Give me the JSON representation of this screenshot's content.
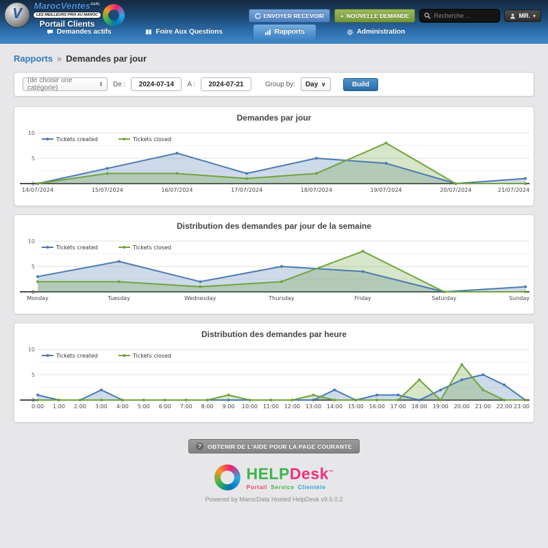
{
  "header": {
    "brand_name": "MarocVentes",
    "brand_suffix": "SARL",
    "brand_emblem_letter": "V",
    "brand_tagline": "LES MEILLEURS PRIX AU MAROC",
    "brand_subtitle": "Portail Clients",
    "send_receive_label": "ENVOYER RECEVOIR",
    "new_request_label": "NOUVELLE DEMANDE",
    "search_placeholder": "Recherche ...",
    "user_label": "MR.",
    "caret": "▾"
  },
  "nav": {
    "items": [
      {
        "label": "Demandes actifs"
      },
      {
        "label": "Foire Aux Questions"
      },
      {
        "label": "Rapports"
      },
      {
        "label": "Administration"
      }
    ]
  },
  "breadcrumb": {
    "section": "Rapports",
    "separator": "»",
    "page": "Demandes par jour"
  },
  "filters": {
    "category_placeholder": "(de choisir une catégorie)",
    "from_label": "De :",
    "from_value": "2024-07-14",
    "to_label": "A :",
    "to_value": "2024-07-21",
    "group_label": "Group by:",
    "group_value": "Day",
    "group_chevron": "∨",
    "build_label": "Build"
  },
  "chart_data": [
    {
      "type": "area",
      "title": "Demandes par jour",
      "categories": [
        "14/07/2024",
        "15/07/2024",
        "16/07/2024",
        "17/07/2024",
        "18/07/2024",
        "19/07/2024",
        "20/07/2024",
        "21/07/2024"
      ],
      "series": [
        {
          "name": "Tickets created",
          "color": "#4a7ab0",
          "values": [
            0,
            3,
            6,
            2,
            5,
            4,
            0,
            1
          ]
        },
        {
          "name": "Tickets closed",
          "color": "#71a33d",
          "values": [
            0,
            2,
            2,
            1,
            2,
            8,
            0,
            0
          ]
        }
      ],
      "ylim": [
        0,
        10
      ],
      "yticks": [
        0,
        5,
        10
      ],
      "legend_position": "top-left",
      "grid": true
    },
    {
      "type": "area",
      "title": "Distribution des demandes par jour de la semaine",
      "categories": [
        "Monday",
        "Tuesday",
        "Wednesday",
        "Thursday",
        "Friday",
        "Saturday",
        "Sunday"
      ],
      "series": [
        {
          "name": "Tickets created",
          "color": "#4a7ab0",
          "values": [
            3,
            6,
            2,
            5,
            4,
            0,
            1
          ]
        },
        {
          "name": "Tickets closed",
          "color": "#71a33d",
          "values": [
            2,
            2,
            1,
            2,
            8,
            0,
            0
          ]
        }
      ],
      "ylim": [
        0,
        10
      ],
      "yticks": [
        0,
        5,
        10
      ],
      "legend_position": "top-left",
      "grid": true
    },
    {
      "type": "area",
      "title": "Distribution des demandes par heure",
      "categories": [
        "0:00",
        "1:00",
        "2:00",
        "3:00",
        "4:00",
        "5:00",
        "6:00",
        "7:00",
        "8:00",
        "9:00",
        "10:00",
        "11:00",
        "12:00",
        "13:00",
        "14:00",
        "15:00",
        "16:00",
        "17:00",
        "18:00",
        "19:00",
        "20:00",
        "21:00",
        "22:00",
        "23:00"
      ],
      "series": [
        {
          "name": "Tickets created",
          "color": "#4a7ab0",
          "values": [
            1,
            0,
            0,
            2,
            0,
            0,
            0,
            0,
            0,
            0,
            0,
            0,
            0,
            0,
            2,
            0,
            1,
            1,
            0,
            2,
            4,
            5,
            3,
            0
          ]
        },
        {
          "name": "Tickets closed",
          "color": "#71a33d",
          "values": [
            0,
            0,
            0,
            0,
            0,
            0,
            0,
            0,
            0,
            1,
            0,
            0,
            0,
            1,
            0,
            0,
            0,
            0,
            4,
            0,
            7,
            2,
            0,
            0
          ]
        }
      ],
      "ylim": [
        0,
        10
      ],
      "yticks": [
        0,
        5,
        10
      ],
      "legend_position": "top-left",
      "grid": true
    }
  ],
  "footer": {
    "help_button_label": "OBTENIR DE L'AIDE POUR LA PAGE COURANTE",
    "help_icon": "?",
    "logo_help": "HELP",
    "logo_desk": "Desk",
    "logo_tm": "™",
    "logo_subtitle_word1": "Portail",
    "logo_subtitle_word2": "Service",
    "logo_subtitle_word3": "Clientèle",
    "powered_by": "Powered by MarocData Hosted HelpDesk v9.5.0.2"
  }
}
